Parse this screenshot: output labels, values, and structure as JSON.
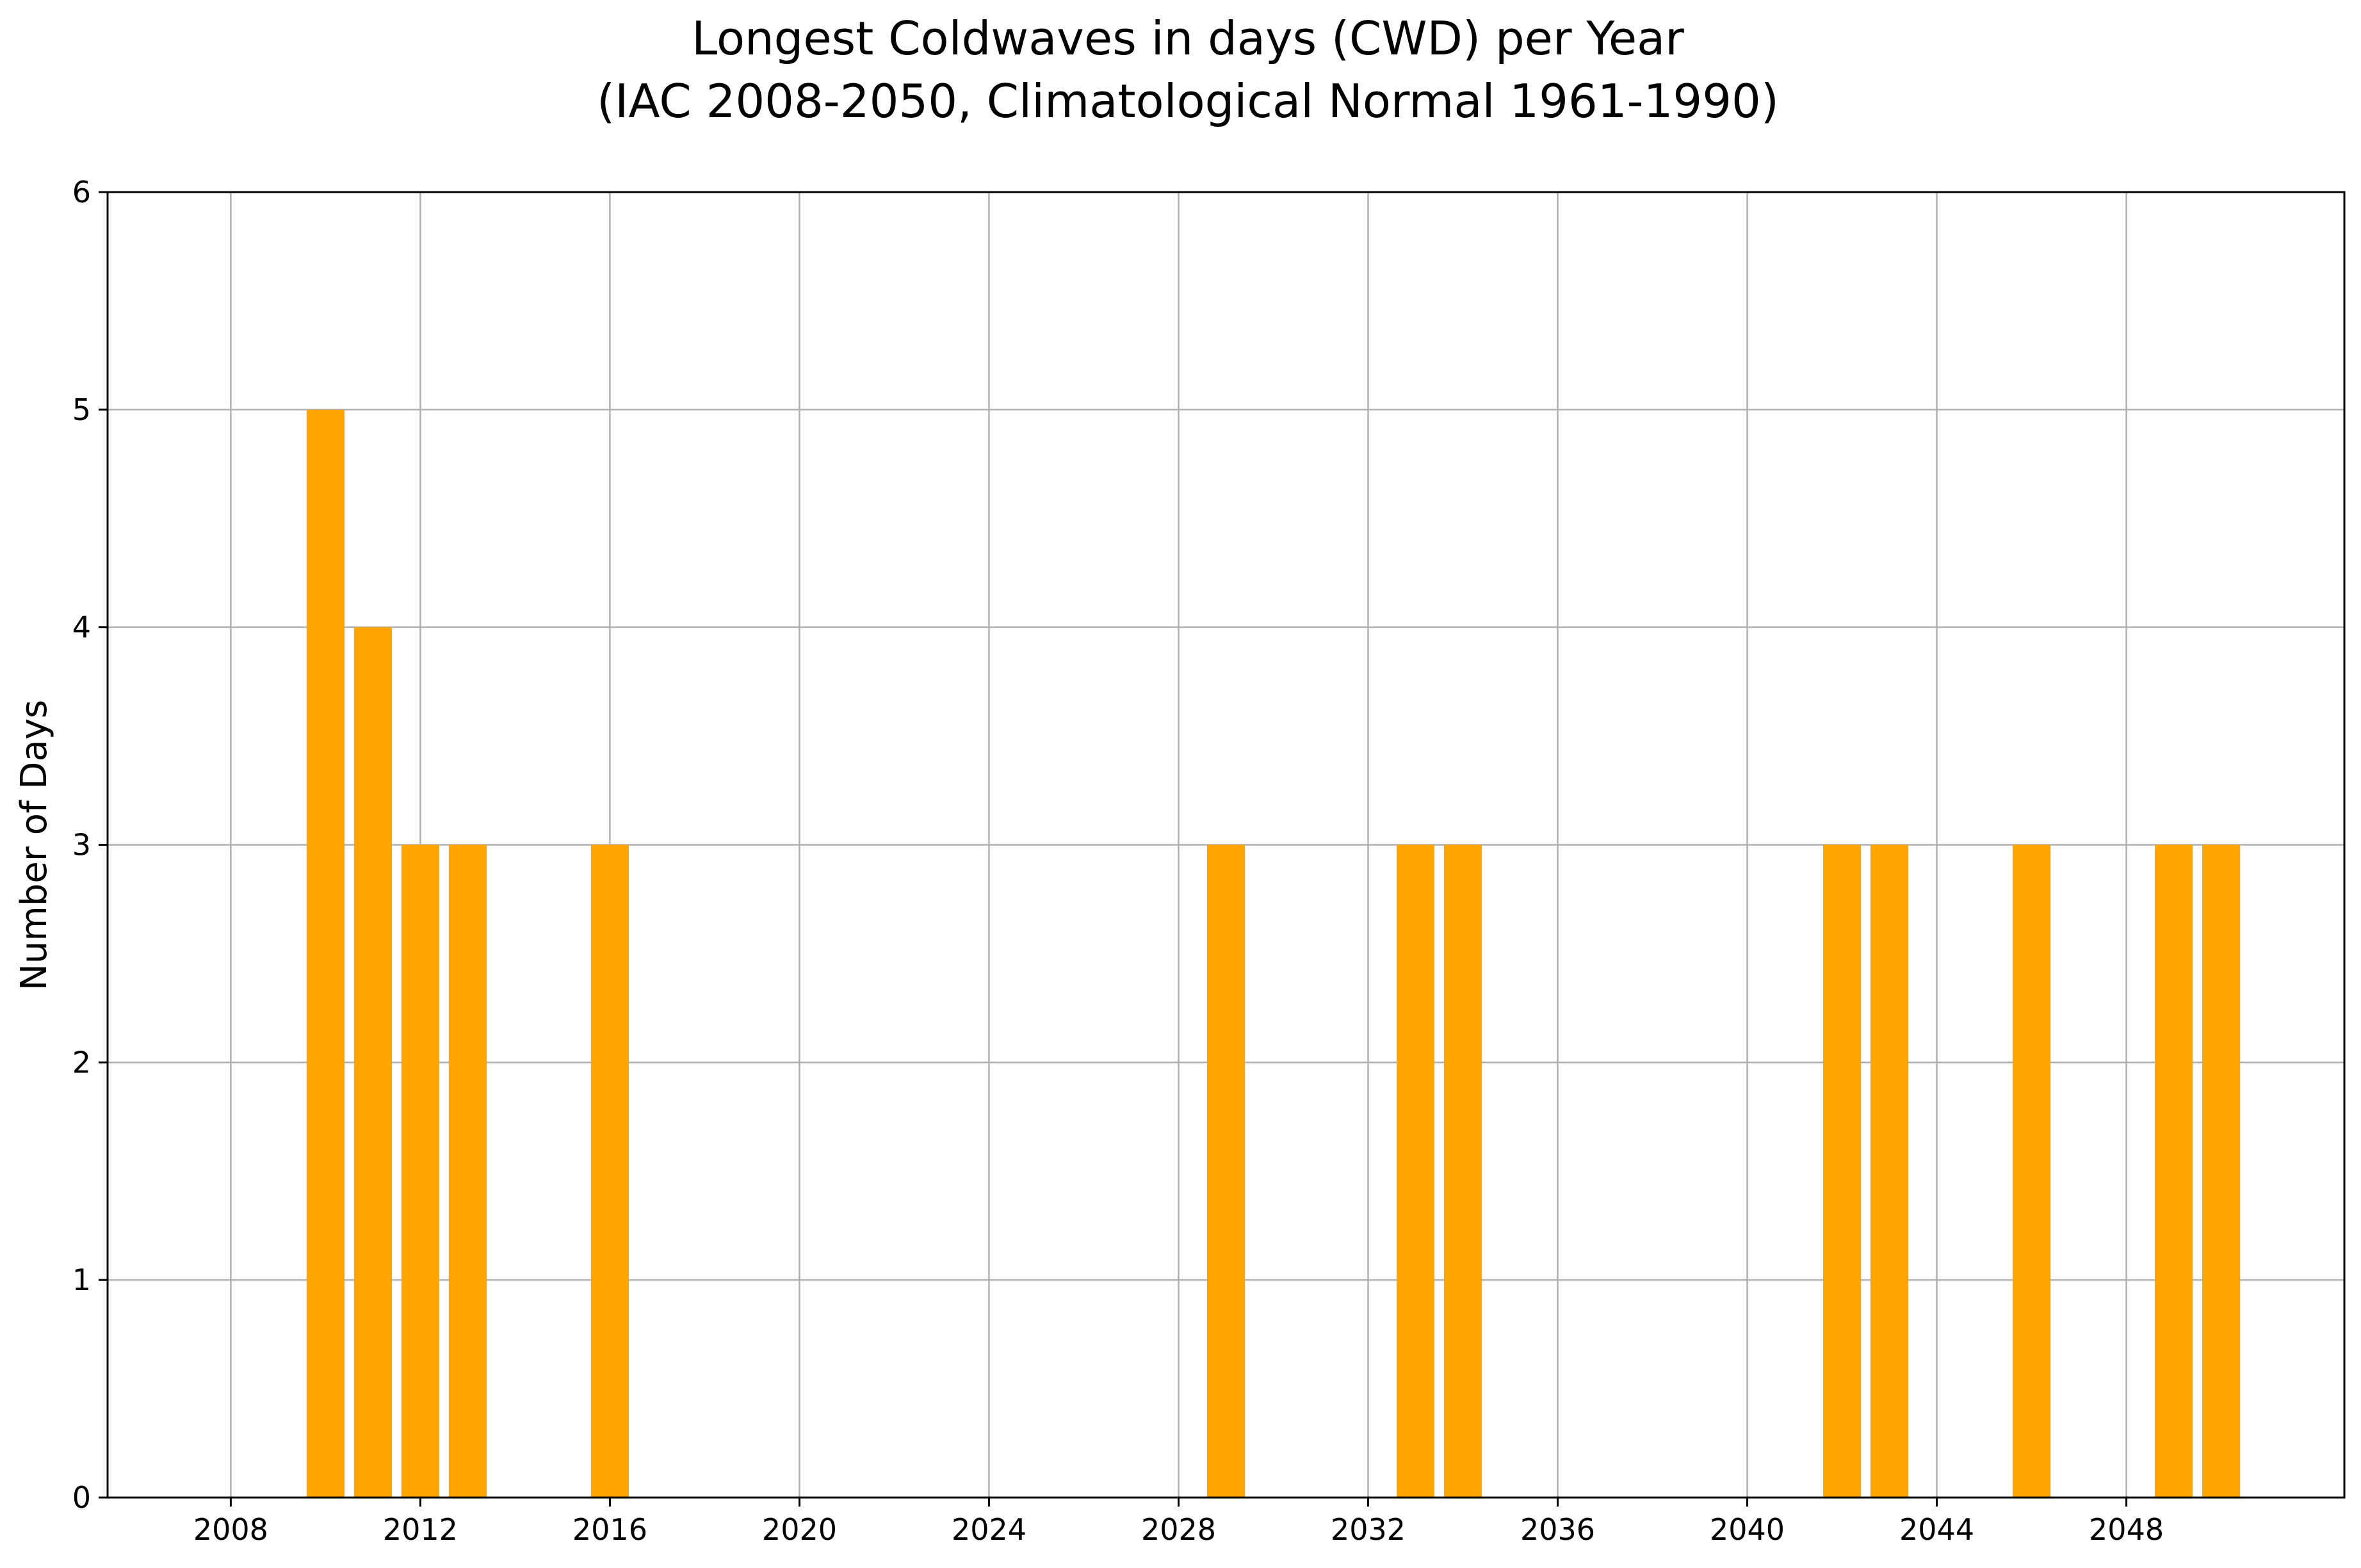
{
  "chart_data": {
    "type": "bar",
    "title_lines": [
      "Longest Coldwaves in days (CWD) per Year",
      "(IAC 2008-2050, Climatological Normal 1961-1990)"
    ],
    "xlabel": "",
    "ylabel": "Number of Days",
    "x": [
      2010,
      2011,
      2012,
      2013,
      2016,
      2029,
      2033,
      2034,
      2042,
      2043,
      2046,
      2049,
      2050
    ],
    "values": [
      5,
      4,
      3,
      3,
      3,
      3,
      3,
      3,
      3,
      3,
      3,
      3,
      3
    ],
    "xlim": [
      2005.4,
      2052.6
    ],
    "ylim": [
      0,
      6
    ],
    "xticks": [
      2008,
      2012,
      2016,
      2020,
      2024,
      2028,
      2032,
      2036,
      2040,
      2044,
      2048
    ],
    "yticks": [
      0,
      1,
      2,
      3,
      4,
      5,
      6
    ],
    "bar_width_years": 0.8,
    "bar_color": "#ffa500",
    "grid": true,
    "grid_color": "#b0b0b0",
    "legend": "none"
  }
}
